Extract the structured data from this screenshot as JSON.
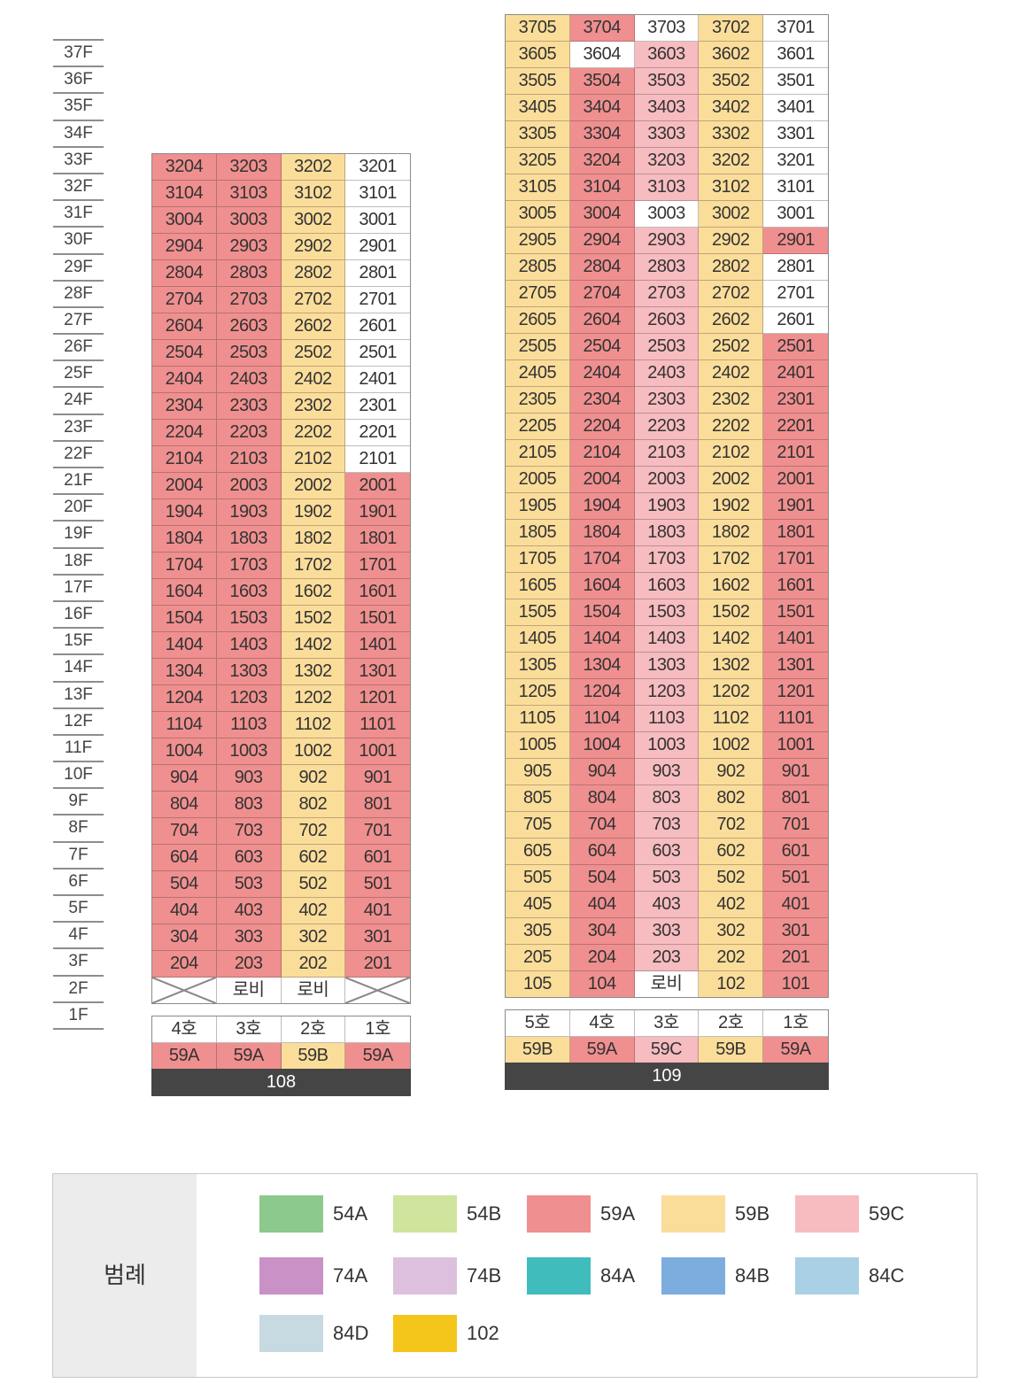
{
  "floors": [
    "37F",
    "36F",
    "35F",
    "34F",
    "33F",
    "32F",
    "31F",
    "30F",
    "29F",
    "28F",
    "27F",
    "26F",
    "25F",
    "24F",
    "23F",
    "22F",
    "21F",
    "20F",
    "19F",
    "18F",
    "17F",
    "16F",
    "15F",
    "14F",
    "13F",
    "12F",
    "11F",
    "10F",
    "9F",
    "8F",
    "7F",
    "6F",
    "5F",
    "4F",
    "3F",
    "2F",
    "1F"
  ],
  "type_colors": {
    "54A": "#8cc98c",
    "54B": "#cfe49c",
    "59A": "#f08f8f",
    "59B": "#fbdd9a",
    "59C": "#f7bcc0",
    "74A": "#c991c5",
    "74B": "#dcc0dd",
    "84A": "#40bcbc",
    "84B": "#7cadde",
    "84C": "#a9d0e4",
    "84D": "#c7d9e1",
    "102": "#f4c51b"
  },
  "buildings": [
    {
      "name": "108",
      "units": [
        "4호",
        "3호",
        "2호",
        "1호"
      ],
      "types": [
        "59A",
        "59A",
        "59B",
        "59A"
      ],
      "white_units": [
        "3201",
        "3101",
        "3001",
        "2901",
        "2801",
        "2701",
        "2601",
        "2501",
        "2401",
        "2301",
        "2201",
        "2101"
      ],
      "rows": [
        [
          "3204",
          "3203",
          "3202",
          "3201"
        ],
        [
          "3104",
          "3103",
          "3102",
          "3101"
        ],
        [
          "3004",
          "3003",
          "3002",
          "3001"
        ],
        [
          "2904",
          "2903",
          "2902",
          "2901"
        ],
        [
          "2804",
          "2803",
          "2802",
          "2801"
        ],
        [
          "2704",
          "2703",
          "2702",
          "2701"
        ],
        [
          "2604",
          "2603",
          "2602",
          "2601"
        ],
        [
          "2504",
          "2503",
          "2502",
          "2501"
        ],
        [
          "2404",
          "2403",
          "2402",
          "2401"
        ],
        [
          "2304",
          "2303",
          "2302",
          "2301"
        ],
        [
          "2204",
          "2203",
          "2202",
          "2201"
        ],
        [
          "2104",
          "2103",
          "2102",
          "2101"
        ],
        [
          "2004",
          "2003",
          "2002",
          "2001"
        ],
        [
          "1904",
          "1903",
          "1902",
          "1901"
        ],
        [
          "1804",
          "1803",
          "1802",
          "1801"
        ],
        [
          "1704",
          "1703",
          "1702",
          "1701"
        ],
        [
          "1604",
          "1603",
          "1602",
          "1601"
        ],
        [
          "1504",
          "1503",
          "1502",
          "1501"
        ],
        [
          "1404",
          "1403",
          "1402",
          "1401"
        ],
        [
          "1304",
          "1303",
          "1302",
          "1301"
        ],
        [
          "1204",
          "1203",
          "1202",
          "1201"
        ],
        [
          "1104",
          "1103",
          "1102",
          "1101"
        ],
        [
          "1004",
          "1003",
          "1002",
          "1001"
        ],
        [
          "904",
          "903",
          "902",
          "901"
        ],
        [
          "804",
          "803",
          "802",
          "801"
        ],
        [
          "704",
          "703",
          "702",
          "701"
        ],
        [
          "604",
          "603",
          "602",
          "601"
        ],
        [
          "504",
          "503",
          "502",
          "501"
        ],
        [
          "404",
          "403",
          "402",
          "401"
        ],
        [
          "304",
          "303",
          "302",
          "301"
        ],
        [
          "204",
          "203",
          "202",
          "201"
        ],
        [
          "",
          "로비",
          "로비",
          ""
        ]
      ]
    },
    {
      "name": "109",
      "units": [
        "5호",
        "4호",
        "3호",
        "2호",
        "1호"
      ],
      "types": [
        "59B",
        "59A",
        "59C",
        "59B",
        "59A"
      ],
      "white_units": [
        "3703",
        "3701",
        "3604",
        "3601",
        "3501",
        "3401",
        "3301",
        "3201",
        "3101",
        "3003",
        "3001",
        "2801",
        "2701",
        "2601",
        "로비"
      ],
      "rows": [
        [
          "3705",
          "3704",
          "3703",
          "3702",
          "3701"
        ],
        [
          "3605",
          "3604",
          "3603",
          "3602",
          "3601"
        ],
        [
          "3505",
          "3504",
          "3503",
          "3502",
          "3501"
        ],
        [
          "3405",
          "3404",
          "3403",
          "3402",
          "3401"
        ],
        [
          "3305",
          "3304",
          "3303",
          "3302",
          "3301"
        ],
        [
          "3205",
          "3204",
          "3203",
          "3202",
          "3201"
        ],
        [
          "3105",
          "3104",
          "3103",
          "3102",
          "3101"
        ],
        [
          "3005",
          "3004",
          "3003",
          "3002",
          "3001"
        ],
        [
          "2905",
          "2904",
          "2903",
          "2902",
          "2901"
        ],
        [
          "2805",
          "2804",
          "2803",
          "2802",
          "2801"
        ],
        [
          "2705",
          "2704",
          "2703",
          "2702",
          "2701"
        ],
        [
          "2605",
          "2604",
          "2603",
          "2602",
          "2601"
        ],
        [
          "2505",
          "2504",
          "2503",
          "2502",
          "2501"
        ],
        [
          "2405",
          "2404",
          "2403",
          "2402",
          "2401"
        ],
        [
          "2305",
          "2304",
          "2303",
          "2302",
          "2301"
        ],
        [
          "2205",
          "2204",
          "2203",
          "2202",
          "2201"
        ],
        [
          "2105",
          "2104",
          "2103",
          "2102",
          "2101"
        ],
        [
          "2005",
          "2004",
          "2003",
          "2002",
          "2001"
        ],
        [
          "1905",
          "1904",
          "1903",
          "1902",
          "1901"
        ],
        [
          "1805",
          "1804",
          "1803",
          "1802",
          "1801"
        ],
        [
          "1705",
          "1704",
          "1703",
          "1702",
          "1701"
        ],
        [
          "1605",
          "1604",
          "1603",
          "1602",
          "1601"
        ],
        [
          "1505",
          "1504",
          "1503",
          "1502",
          "1501"
        ],
        [
          "1405",
          "1404",
          "1403",
          "1402",
          "1401"
        ],
        [
          "1305",
          "1304",
          "1303",
          "1302",
          "1301"
        ],
        [
          "1205",
          "1204",
          "1203",
          "1202",
          "1201"
        ],
        [
          "1105",
          "1104",
          "1103",
          "1102",
          "1101"
        ],
        [
          "1005",
          "1004",
          "1003",
          "1002",
          "1001"
        ],
        [
          "905",
          "904",
          "903",
          "902",
          "901"
        ],
        [
          "805",
          "804",
          "803",
          "802",
          "801"
        ],
        [
          "705",
          "704",
          "703",
          "702",
          "701"
        ],
        [
          "605",
          "604",
          "603",
          "602",
          "601"
        ],
        [
          "505",
          "504",
          "503",
          "502",
          "501"
        ],
        [
          "405",
          "404",
          "403",
          "402",
          "401"
        ],
        [
          "305",
          "304",
          "303",
          "302",
          "301"
        ],
        [
          "205",
          "204",
          "203",
          "202",
          "201"
        ],
        [
          "105",
          "104",
          "로비",
          "102",
          "101"
        ]
      ]
    }
  ],
  "legend": {
    "title": "범례",
    "items": [
      "54A",
      "54B",
      "59A",
      "59B",
      "59C",
      "74A",
      "74B",
      "84A",
      "84B",
      "84C",
      "84D",
      "102"
    ]
  }
}
